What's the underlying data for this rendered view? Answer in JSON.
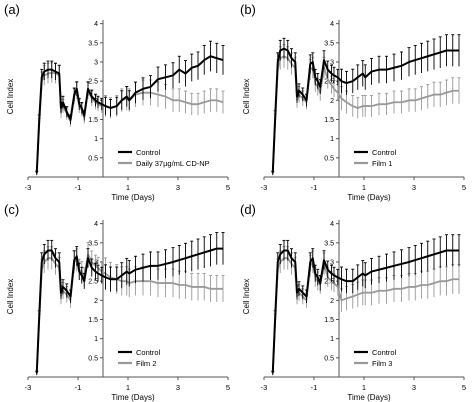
{
  "chart_data": [
    {
      "panel_label": "(a)",
      "type": "line",
      "xlabel": "Time (Days)",
      "ylabel": "Cell Index",
      "xlim": [
        -3,
        5
      ],
      "ylim": [
        0,
        4.2
      ],
      "xticks": [
        "-3",
        "-1",
        "1",
        "3",
        "5"
      ],
      "xtick_values": [
        -3,
        -1,
        1,
        3,
        5
      ],
      "yticks": [
        "0.5",
        "1",
        "1.5",
        "2",
        "2.5",
        "3",
        "3.5",
        "4"
      ],
      "ytick_values": [
        0.5,
        1,
        1.5,
        2,
        2.5,
        3,
        3.5,
        4
      ],
      "legend_position": "bottom-right",
      "series": [
        {
          "name": "Control",
          "color": "#000000",
          "x": [
            -2.65,
            -2.55,
            -2.45,
            -2.35,
            -2.2,
            -2.05,
            -1.9,
            -1.75,
            -1.68,
            -1.6,
            -1.45,
            -1.3,
            -1.15,
            -1.05,
            -0.95,
            -0.85,
            -0.75,
            -0.6,
            -0.45,
            -0.3,
            -0.2,
            -0.05,
            0.1,
            0.3,
            0.55,
            0.75,
            0.95,
            1.05,
            1.3,
            1.6,
            1.9,
            2.2,
            2.5,
            2.8,
            3.05,
            3.3,
            3.55,
            3.8,
            4.05,
            4.3,
            4.55,
            4.8
          ],
          "y": [
            0.1,
            1.5,
            2.6,
            2.75,
            2.8,
            2.8,
            2.75,
            2.7,
            1.8,
            1.95,
            1.7,
            1.5,
            2.15,
            2.3,
            1.9,
            1.8,
            1.6,
            2.3,
            2.1,
            2.0,
            1.95,
            1.9,
            1.85,
            1.8,
            1.85,
            2.0,
            2.1,
            2.0,
            2.2,
            2.3,
            2.35,
            2.55,
            2.6,
            2.65,
            2.8,
            2.7,
            2.85,
            2.9,
            3.05,
            3.15,
            3.1,
            3.05
          ]
        },
        {
          "name": "Daily 37µg/mL CD-NP",
          "color": "#999999",
          "x": [
            -2.65,
            -2.55,
            -2.45,
            -2.35,
            -2.2,
            -2.05,
            -1.9,
            -1.75,
            -1.68,
            -1.6,
            -1.45,
            -1.3,
            -1.15,
            -1.05,
            -0.95,
            -0.85,
            -0.75,
            -0.6,
            -0.45,
            -0.3,
            -0.2,
            -0.05,
            0.1,
            0.3,
            0.55,
            0.75,
            0.95,
            1.05,
            1.3,
            1.6,
            1.9,
            2.2,
            2.5,
            2.8,
            3.05,
            3.3,
            3.55,
            3.8,
            4.05,
            4.3,
            4.55,
            4.8
          ],
          "y": [
            0.1,
            1.4,
            2.5,
            2.65,
            2.7,
            2.72,
            2.7,
            2.65,
            1.7,
            1.85,
            1.65,
            1.45,
            2.1,
            2.25,
            1.85,
            1.75,
            1.55,
            2.25,
            2.05,
            1.95,
            1.9,
            1.85,
            1.85,
            1.8,
            1.85,
            2.0,
            2.05,
            2.0,
            2.15,
            2.2,
            2.2,
            2.15,
            2.1,
            2.0,
            2.0,
            1.95,
            1.9,
            1.9,
            1.95,
            2.0,
            2.0,
            1.95
          ]
        }
      ]
    },
    {
      "panel_label": "(b)",
      "type": "line",
      "xlabel": "Time (Days)",
      "ylabel": "Cell Index",
      "xlim": [
        -3,
        5
      ],
      "ylim": [
        0,
        4.2
      ],
      "xticks": [
        "-3",
        "-1",
        "1",
        "3",
        "5"
      ],
      "xtick_values": [
        -3,
        -1,
        1,
        3,
        5
      ],
      "yticks": [
        "0.5",
        "1",
        "1.5",
        "2",
        "2.5",
        "3",
        "3.5",
        "4"
      ],
      "ytick_values": [
        0.5,
        1,
        1.5,
        2,
        2.5,
        3,
        3.5,
        4
      ],
      "legend_position": "bottom-right",
      "series": [
        {
          "name": "Control",
          "color": "#000000",
          "x": [
            -2.65,
            -2.55,
            -2.45,
            -2.35,
            -2.2,
            -2.05,
            -1.9,
            -1.75,
            -1.68,
            -1.6,
            -1.45,
            -1.3,
            -1.15,
            -1.05,
            -0.95,
            -0.85,
            -0.75,
            -0.6,
            -0.45,
            -0.3,
            -0.2,
            -0.05,
            0.1,
            0.3,
            0.55,
            0.75,
            0.95,
            1.05,
            1.3,
            1.6,
            1.9,
            2.2,
            2.5,
            2.8,
            3.05,
            3.3,
            3.55,
            3.8,
            4.05,
            4.3,
            4.55,
            4.8
          ],
          "y": [
            0.1,
            1.6,
            3.0,
            3.3,
            3.35,
            3.3,
            3.1,
            3.0,
            2.1,
            2.25,
            2.15,
            2.0,
            2.95,
            3.0,
            2.6,
            2.5,
            2.35,
            3.05,
            2.8,
            2.7,
            2.65,
            2.6,
            2.5,
            2.45,
            2.5,
            2.6,
            2.7,
            2.6,
            2.75,
            2.8,
            2.8,
            2.85,
            2.9,
            3.0,
            3.05,
            3.1,
            3.15,
            3.2,
            3.25,
            3.3,
            3.3,
            3.3
          ]
        },
        {
          "name": "Film 1",
          "color": "#999999",
          "x": [
            -2.65,
            -2.55,
            -2.45,
            -2.35,
            -2.2,
            -2.05,
            -1.9,
            -1.75,
            -1.68,
            -1.6,
            -1.45,
            -1.3,
            -1.15,
            -1.05,
            -0.95,
            -0.85,
            -0.75,
            -0.6,
            -0.45,
            -0.3,
            -0.2,
            -0.05,
            0.1,
            0.3,
            0.55,
            0.75,
            0.95,
            1.05,
            1.3,
            1.6,
            1.9,
            2.2,
            2.5,
            2.8,
            3.05,
            3.3,
            3.55,
            3.8,
            4.05,
            4.3,
            4.55,
            4.8
          ],
          "y": [
            0.1,
            1.5,
            2.8,
            3.1,
            3.15,
            3.1,
            2.95,
            2.85,
            2.0,
            2.15,
            2.05,
            1.95,
            2.8,
            2.85,
            2.45,
            2.35,
            2.2,
            2.85,
            2.55,
            2.4,
            2.3,
            2.2,
            2.05,
            1.95,
            1.85,
            1.8,
            1.85,
            1.85,
            1.85,
            1.9,
            1.9,
            1.95,
            1.95,
            2.0,
            2.0,
            2.05,
            2.1,
            2.15,
            2.15,
            2.2,
            2.25,
            2.25
          ]
        }
      ]
    },
    {
      "panel_label": "(c)",
      "type": "line",
      "xlabel": "Time (Days)",
      "ylabel": "Cell Index",
      "xlim": [
        -3,
        5
      ],
      "ylim": [
        0,
        4.2
      ],
      "xticks": [
        "-3",
        "-1",
        "1",
        "3",
        "5"
      ],
      "xtick_values": [
        -3,
        -1,
        1,
        3,
        5
      ],
      "yticks": [
        "0.5",
        "1",
        "1.5",
        "2",
        "2.5",
        "3",
        "3.5",
        "4"
      ],
      "ytick_values": [
        0.5,
        1,
        1.5,
        2,
        2.5,
        3,
        3.5,
        4
      ],
      "legend_position": "bottom-right",
      "series": [
        {
          "name": "Control",
          "color": "#000000",
          "x": [
            -2.65,
            -2.55,
            -2.45,
            -2.35,
            -2.2,
            -2.05,
            -1.9,
            -1.75,
            -1.68,
            -1.6,
            -1.45,
            -1.3,
            -1.15,
            -1.05,
            -0.95,
            -0.85,
            -0.75,
            -0.6,
            -0.45,
            -0.3,
            -0.2,
            -0.05,
            0.1,
            0.3,
            0.55,
            0.75,
            0.95,
            1.05,
            1.3,
            1.6,
            1.9,
            2.2,
            2.5,
            2.8,
            3.05,
            3.3,
            3.55,
            3.8,
            4.05,
            4.3,
            4.55,
            4.8
          ],
          "y": [
            0.1,
            1.6,
            3.0,
            3.2,
            3.3,
            3.3,
            3.1,
            3.0,
            2.2,
            2.35,
            2.25,
            2.1,
            3.05,
            3.15,
            2.75,
            2.65,
            2.5,
            3.1,
            2.85,
            2.75,
            2.7,
            2.65,
            2.6,
            2.55,
            2.55,
            2.65,
            2.75,
            2.7,
            2.8,
            2.85,
            2.9,
            2.9,
            2.95,
            3.0,
            3.05,
            3.1,
            3.15,
            3.2,
            3.25,
            3.3,
            3.35,
            3.35
          ]
        },
        {
          "name": "Film 2",
          "color": "#999999",
          "x": [
            -2.65,
            -2.55,
            -2.45,
            -2.35,
            -2.2,
            -2.05,
            -1.9,
            -1.75,
            -1.68,
            -1.6,
            -1.45,
            -1.3,
            -1.15,
            -1.05,
            -0.95,
            -0.85,
            -0.75,
            -0.6,
            -0.45,
            -0.3,
            -0.2,
            -0.05,
            0.1,
            0.3,
            0.55,
            0.75,
            0.95,
            1.05,
            1.3,
            1.6,
            1.9,
            2.2,
            2.5,
            2.8,
            3.05,
            3.3,
            3.55,
            3.8,
            4.05,
            4.3,
            4.55,
            4.8
          ],
          "y": [
            0.1,
            1.5,
            2.8,
            3.0,
            3.1,
            3.1,
            2.95,
            2.85,
            2.1,
            2.25,
            2.15,
            2.0,
            3.0,
            3.05,
            2.8,
            2.75,
            2.6,
            3.2,
            3.0,
            2.9,
            2.85,
            2.75,
            2.7,
            2.6,
            2.55,
            2.5,
            2.5,
            2.45,
            2.5,
            2.5,
            2.5,
            2.45,
            2.45,
            2.45,
            2.4,
            2.4,
            2.35,
            2.35,
            2.35,
            2.3,
            2.3,
            2.3
          ]
        }
      ]
    },
    {
      "panel_label": "(d)",
      "type": "line",
      "xlabel": "Time (Days)",
      "ylabel": "Cell Index",
      "xlim": [
        -3,
        5
      ],
      "ylim": [
        0,
        4.2
      ],
      "xticks": [
        "-3",
        "-1",
        "1",
        "3",
        "5"
      ],
      "xtick_values": [
        -3,
        -1,
        1,
        3,
        5
      ],
      "yticks": [
        "0.5",
        "1",
        "1.5",
        "2",
        "2.5",
        "3",
        "3.5",
        "4"
      ],
      "ytick_values": [
        0.5,
        1,
        1.5,
        2,
        2.5,
        3,
        3.5,
        4
      ],
      "legend_position": "bottom-right",
      "series": [
        {
          "name": "Control",
          "color": "#000000",
          "x": [
            -2.65,
            -2.55,
            -2.45,
            -2.35,
            -2.2,
            -2.05,
            -1.9,
            -1.75,
            -1.68,
            -1.6,
            -1.45,
            -1.3,
            -1.15,
            -1.05,
            -0.95,
            -0.85,
            -0.75,
            -0.6,
            -0.45,
            -0.3,
            -0.2,
            -0.05,
            0.1,
            0.3,
            0.55,
            0.75,
            0.95,
            1.05,
            1.3,
            1.6,
            1.9,
            2.2,
            2.5,
            2.8,
            3.05,
            3.3,
            3.55,
            3.8,
            4.05,
            4.3,
            4.55,
            4.8
          ],
          "y": [
            0.1,
            1.6,
            3.0,
            3.2,
            3.3,
            3.3,
            3.1,
            3.0,
            2.2,
            2.3,
            2.2,
            2.1,
            3.0,
            3.1,
            2.7,
            2.6,
            2.45,
            3.05,
            2.8,
            2.7,
            2.65,
            2.6,
            2.55,
            2.5,
            2.5,
            2.6,
            2.7,
            2.65,
            2.75,
            2.8,
            2.85,
            2.9,
            2.95,
            3.0,
            3.05,
            3.1,
            3.15,
            3.2,
            3.25,
            3.3,
            3.3,
            3.3
          ]
        },
        {
          "name": "Film 3",
          "color": "#999999",
          "x": [
            -2.65,
            -2.55,
            -2.45,
            -2.35,
            -2.2,
            -2.05,
            -1.9,
            -1.75,
            -1.68,
            -1.6,
            -1.45,
            -1.3,
            -1.15,
            -1.05,
            -0.95,
            -0.85,
            -0.75,
            -0.6,
            -0.45,
            -0.3,
            -0.2,
            -0.05,
            0.1,
            0.3,
            0.55,
            0.75,
            0.95,
            1.05,
            1.3,
            1.6,
            1.9,
            2.2,
            2.5,
            2.8,
            3.05,
            3.3,
            3.55,
            3.8,
            4.05,
            4.3,
            4.55,
            4.8
          ],
          "y": [
            0.1,
            1.5,
            2.8,
            3.0,
            3.1,
            3.1,
            2.95,
            2.85,
            2.1,
            2.2,
            2.1,
            2.0,
            2.9,
            3.0,
            2.6,
            2.5,
            2.4,
            2.95,
            2.6,
            2.5,
            2.45,
            2.35,
            2.0,
            2.05,
            2.1,
            2.15,
            2.2,
            2.2,
            2.2,
            2.25,
            2.25,
            2.3,
            2.3,
            2.35,
            2.35,
            2.4,
            2.4,
            2.45,
            2.5,
            2.5,
            2.55,
            2.55
          ]
        }
      ]
    }
  ]
}
